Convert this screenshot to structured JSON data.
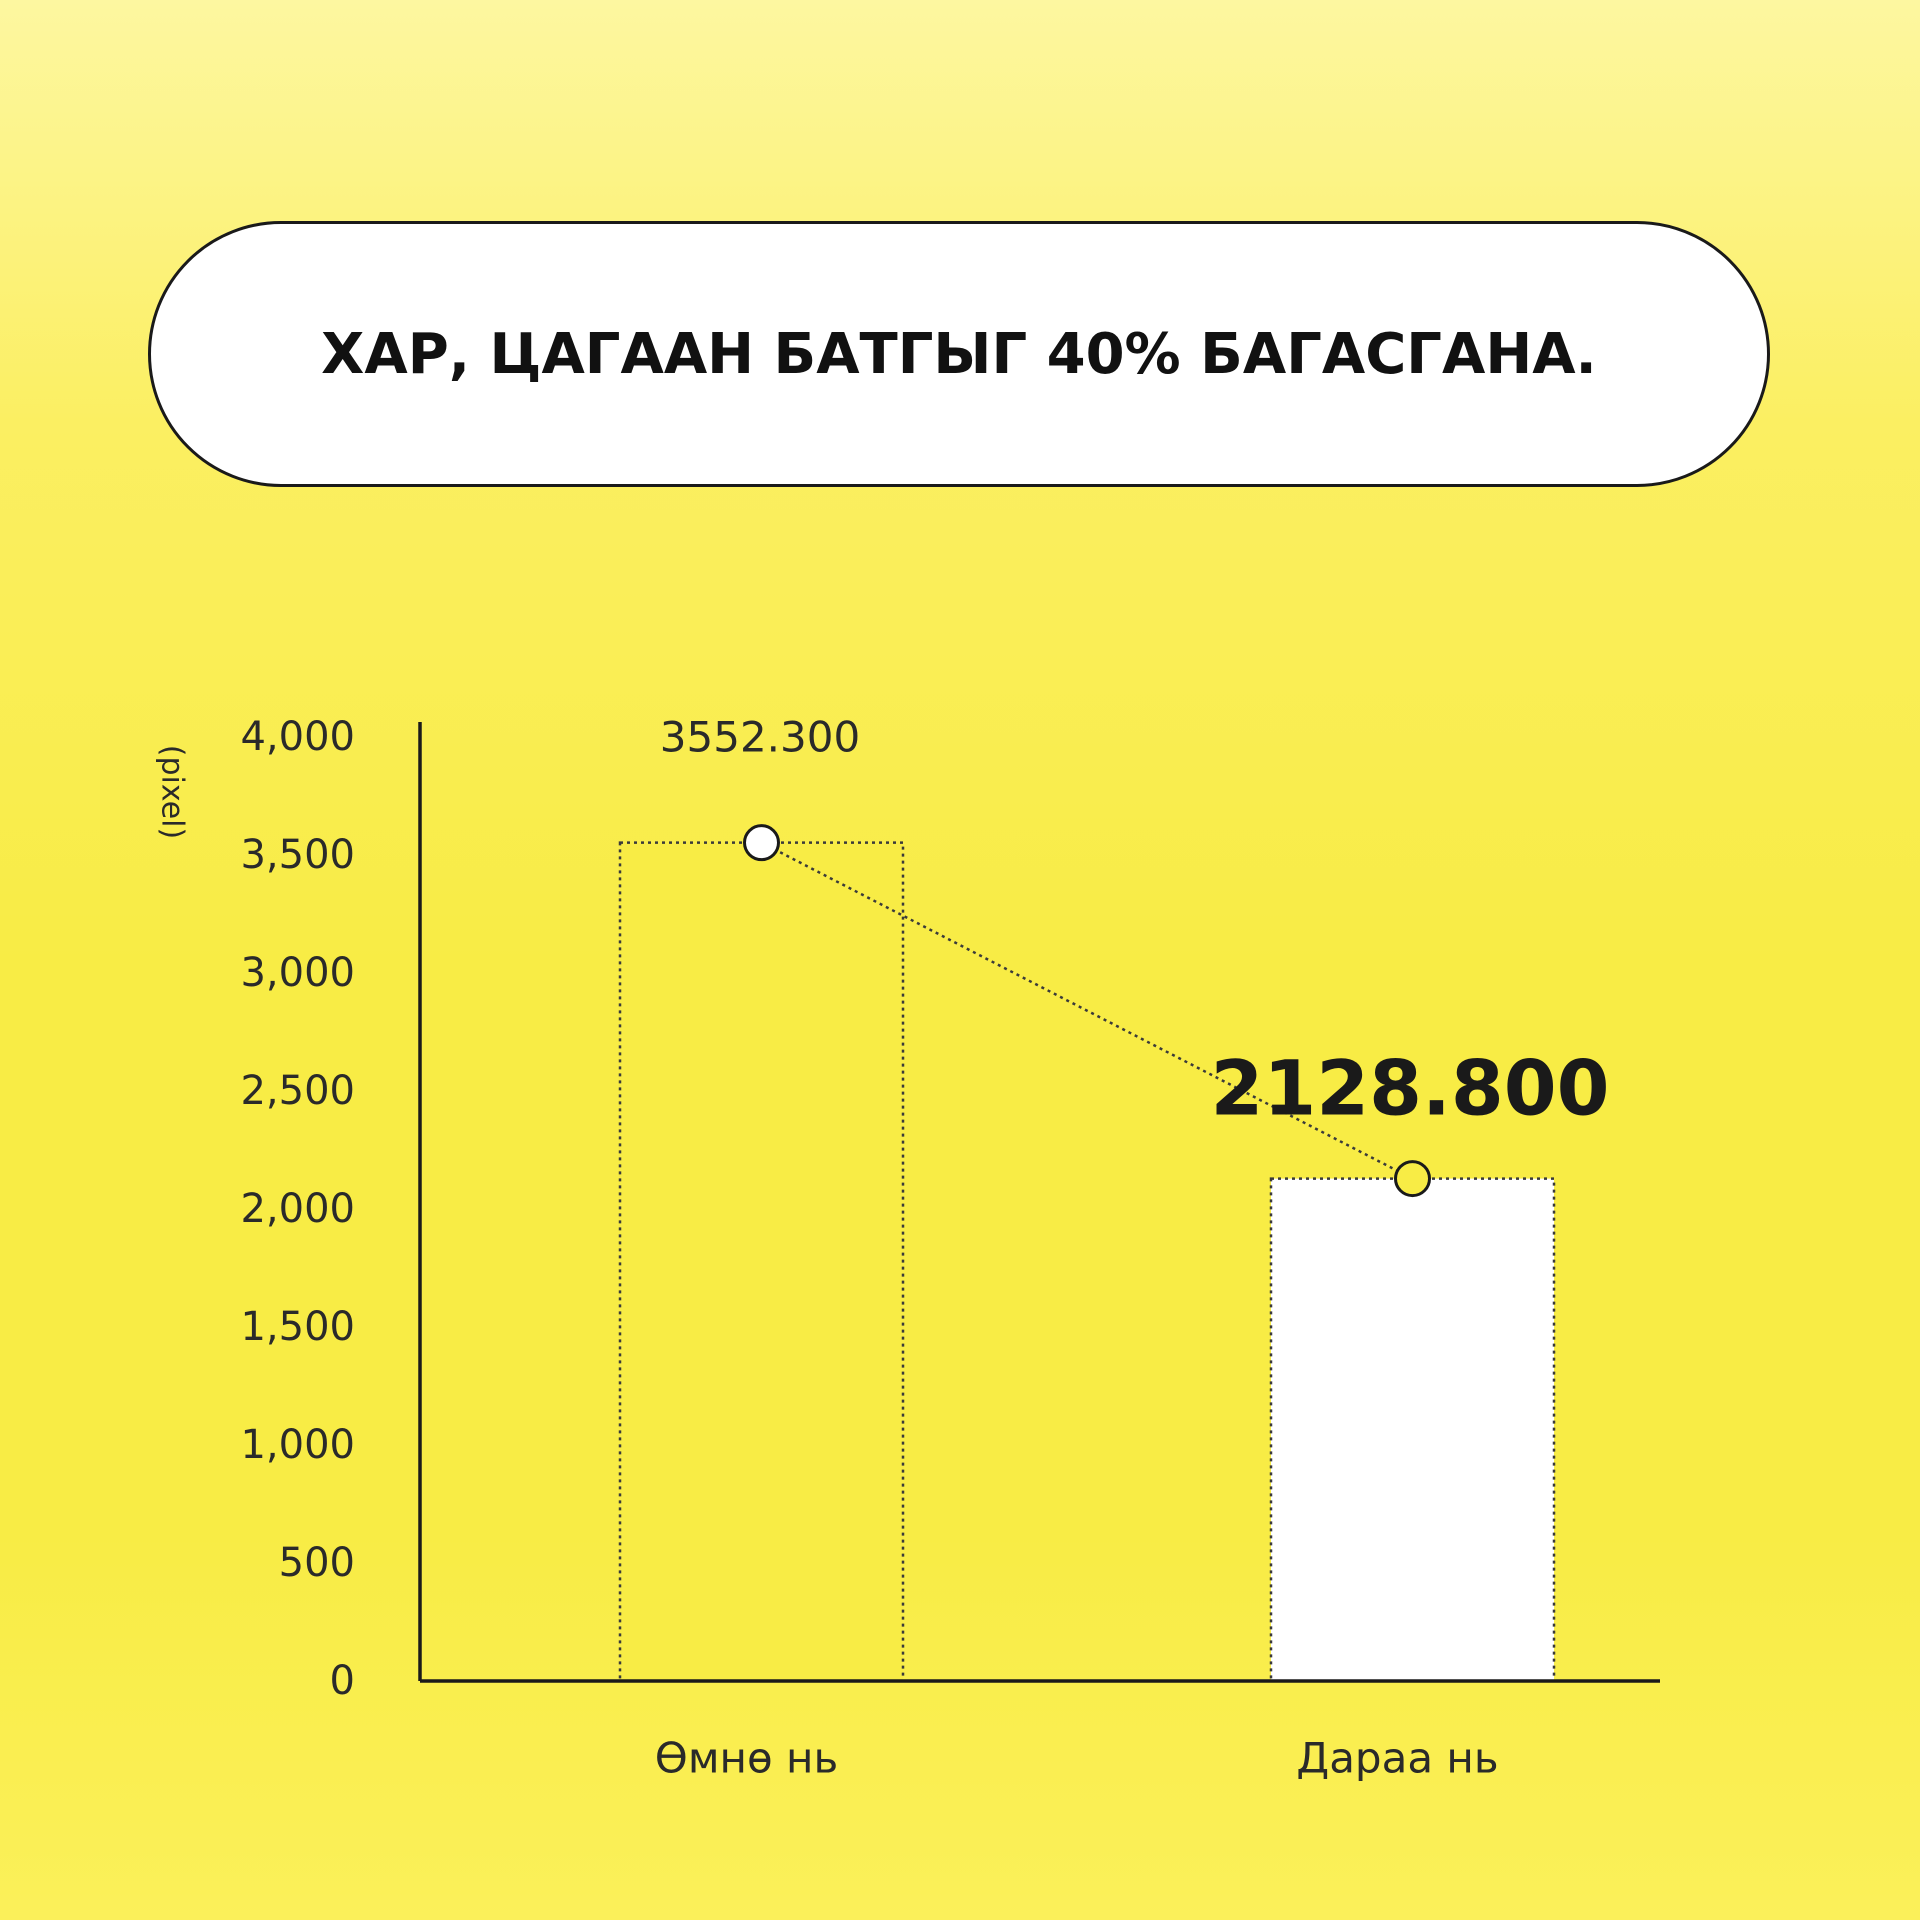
{
  "title": "ХАР, ЦАГААН БАТГЫГ 40% БАГАСГАНА.",
  "colors": {
    "background": "#f8ec45",
    "bar_before": "#f8ec45",
    "bar_after": "#ffffff",
    "axis": "#1a1a1a",
    "text": "#2a2a2a"
  },
  "chart_data": {
    "type": "bar",
    "ylabel": "(pixel)",
    "ylim": [
      0,
      4000
    ],
    "yticks": [
      0,
      500,
      1000,
      1500,
      2000,
      2500,
      3000,
      3500,
      4000
    ],
    "ytick_labels": [
      "0",
      "500",
      "1,000",
      "1,500",
      "2,000",
      "2,500",
      "3,000",
      "3,500",
      "4,000"
    ],
    "categories": [
      "Өмнө нь",
      "Дараа нь"
    ],
    "values": [
      3552.3,
      2128.8
    ],
    "value_labels": [
      "3552.300",
      "2128.800"
    ],
    "grid": false,
    "connector_line": true
  }
}
